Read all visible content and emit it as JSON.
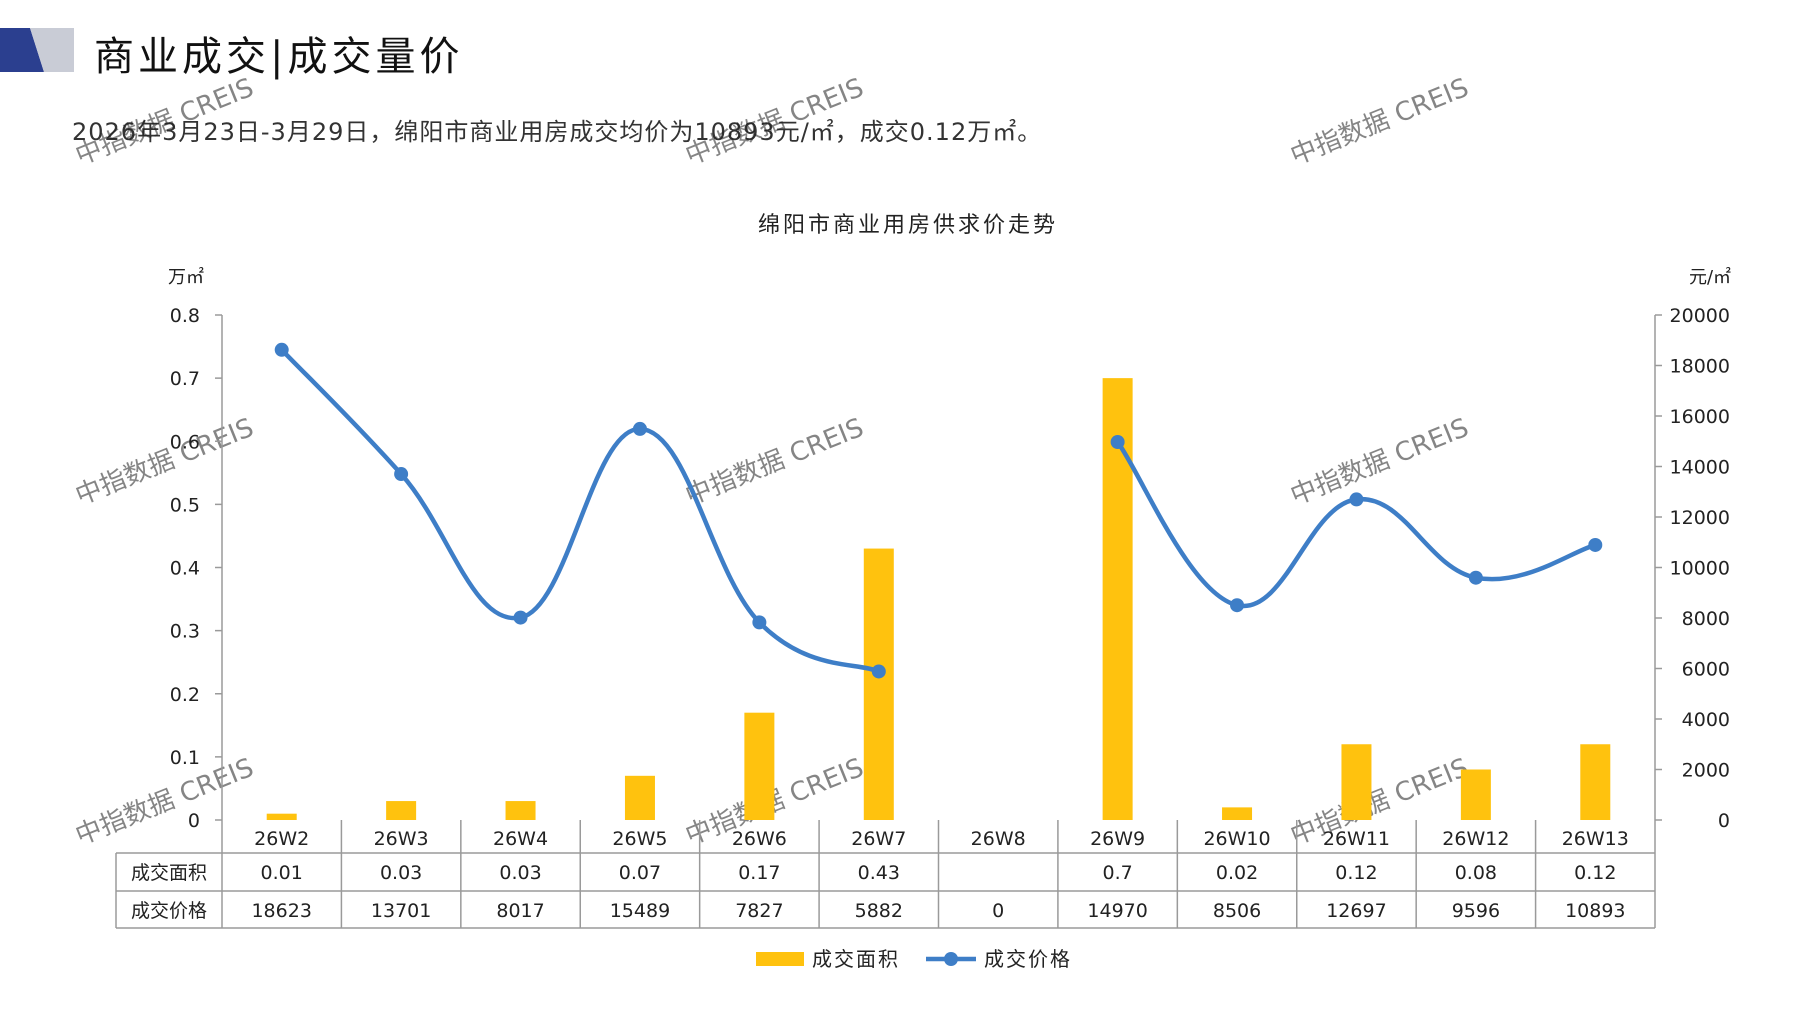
{
  "header": {
    "title": "商业成交|成交量价",
    "summary": "2026年3月23日-3月29日，绵阳市商业用房成交均价为10893元/㎡，成交0.12万㎡。"
  },
  "watermark": "中指数据 CREIS",
  "colors": {
    "bar": "#FFC20E",
    "line": "#3E7EC7",
    "logo_dark": "#2B3F8F",
    "logo_light": "#C9CCD6",
    "grid": "#9a9a9a"
  },
  "chart_data": {
    "type": "bar+line",
    "title": "绵阳市商业用房供求价走势",
    "left_unit": "万㎡",
    "right_unit": "元/㎡",
    "categories": [
      "26W2",
      "26W3",
      "26W4",
      "26W5",
      "26W6",
      "26W7",
      "26W8",
      "26W9",
      "26W10",
      "26W11",
      "26W12",
      "26W13"
    ],
    "left_axis": {
      "min": 0,
      "max": 0.8,
      "ticks": [
        "0",
        "0.1",
        "0.2",
        "0.3",
        "0.4",
        "0.5",
        "0.6",
        "0.7",
        "0.8"
      ]
    },
    "right_axis": {
      "min": 0,
      "max": 20000,
      "ticks": [
        "0",
        "2000",
        "4000",
        "6000",
        "8000",
        "10000",
        "12000",
        "14000",
        "16000",
        "18000",
        "20000"
      ]
    },
    "series": [
      {
        "name": "成交面积",
        "type": "bar",
        "axis": "left",
        "values": [
          0.01,
          0.03,
          0.03,
          0.07,
          0.17,
          0.43,
          null,
          0.7,
          0.02,
          0.12,
          0.08,
          0.12
        ],
        "labels": [
          "0.01",
          "0.03",
          "0.03",
          "0.07",
          "0.17",
          "0.43",
          "",
          "0.7",
          "0.02",
          "0.12",
          "0.08",
          "0.12"
        ]
      },
      {
        "name": "成交价格",
        "type": "line",
        "axis": "right",
        "segments": [
          [
            0,
            5
          ],
          [
            7,
            11
          ]
        ],
        "values": [
          18623,
          13701,
          8017,
          15489,
          7827,
          5882,
          0,
          14970,
          8506,
          12697,
          9596,
          10893
        ],
        "labels": [
          "18623",
          "13701",
          "8017",
          "15489",
          "7827",
          "5882",
          "0",
          "14970",
          "8506",
          "12697",
          "9596",
          "10893"
        ]
      }
    ],
    "legend": [
      "成交面积",
      "成交价格"
    ],
    "legend_position": "bottom"
  }
}
